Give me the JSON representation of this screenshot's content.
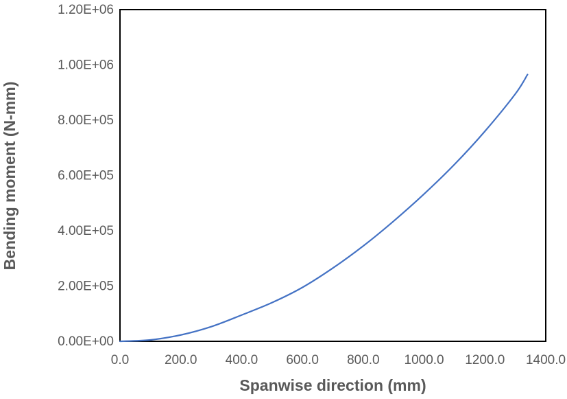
{
  "chart_data": {
    "type": "line",
    "title": "",
    "xlabel": "Spanwise direction (mm)",
    "ylabel": "Bending moment (N-mm)",
    "xlim": [
      0,
      1400
    ],
    "ylim": [
      0,
      1200000
    ],
    "x_ticks": [
      0,
      200,
      400,
      600,
      800,
      1000,
      1200,
      1400
    ],
    "x_tick_labels": [
      "0.0",
      "200.0",
      "400.0",
      "600.0",
      "800.0",
      "1000.0",
      "1200.0",
      "1400.0"
    ],
    "y_ticks": [
      0,
      200000,
      400000,
      600000,
      800000,
      1000000,
      1200000
    ],
    "y_tick_labels": [
      "0.00E+00",
      "2.00E+05",
      "4.00E+05",
      "6.00E+05",
      "8.00E+05",
      "1.00E+06",
      "1.20E+06"
    ],
    "grid": false,
    "legend": "none",
    "series": [
      {
        "color": "#4472c4",
        "x": [
          0,
          100,
          200,
          300,
          400,
          500,
          600,
          700,
          800,
          900,
          1000,
          1100,
          1200,
          1300,
          1340
        ],
        "y": [
          0,
          5000,
          23000,
          53000,
          95000,
          140000,
          195000,
          265000,
          345000,
          435000,
          533000,
          640000,
          760000,
          895000,
          965000
        ]
      }
    ]
  }
}
